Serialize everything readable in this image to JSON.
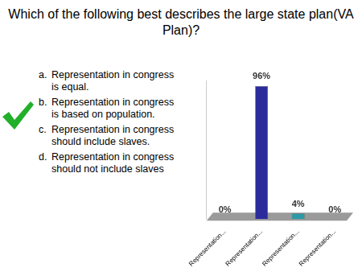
{
  "slide": {
    "title": "Which of the following best describes the large state plan(VA Plan)?",
    "options": [
      {
        "letter": "a.",
        "text": "Representation in congress is equal."
      },
      {
        "letter": "b.",
        "text": "Representation in congress is based on population."
      },
      {
        "letter": "c.",
        "text": "Representation in congress should include slaves."
      },
      {
        "letter": "d.",
        "text": "Representation in congress should not include slaves"
      }
    ],
    "checked": "b."
  },
  "chart_data": {
    "type": "bar",
    "categories": [
      "Representation...",
      "Representation...",
      "Representation...",
      "Representation..."
    ],
    "values": [
      0,
      96,
      4,
      0
    ],
    "value_labels": [
      "0%",
      "96%",
      "4%",
      "0%"
    ],
    "data_labels": true,
    "colors": [
      "#9fdbe8",
      "#2b2b9c",
      "#2a9aa8",
      "#b8c400"
    ],
    "ylim": [
      0,
      100
    ],
    "grid": false,
    "tick_labels": "x"
  }
}
